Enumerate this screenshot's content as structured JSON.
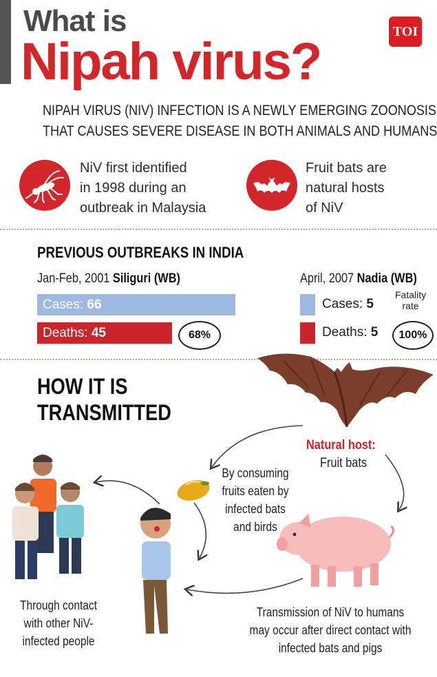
{
  "header": {
    "title_line1": "What is",
    "title_line2": "Nipah virus?",
    "logo_text": "TOI"
  },
  "intro": {
    "line1": "NIPAH VIRUS (NIV) INFECTION IS A NEWLY EMERGING ZOONOSIS",
    "line2": "THAT CAUSES SEVERE DISEASE IN BOTH ANIMALS AND HUMANS"
  },
  "facts": [
    {
      "line1": "NiV first identified",
      "line2": "in 1998 during an",
      "line3": "outbreak in Malaysia",
      "icon": "mosquito-icon"
    },
    {
      "line1": "Fruit bats are",
      "line2": "natural hosts",
      "line3": "of NiV",
      "icon": "bat-icon"
    }
  ],
  "outbreaks": {
    "title": "PREVIOUS OUTBREAKS IN INDIA",
    "siliguri": {
      "date": "Jan-Feb, 2001",
      "place": "Siliguri (WB)",
      "cases_label": "Cases:",
      "cases": 66,
      "deaths_label": "Deaths:",
      "deaths": 45,
      "fatality": "68%"
    },
    "nadia": {
      "date": "April, 2007",
      "place": "Nadia (WB)",
      "cases_label": "Cases:",
      "cases": 5,
      "deaths_label": "Deaths:",
      "deaths": 5,
      "fatality": "100%",
      "fatality_label_line1": "Fatality",
      "fatality_label_line2": "rate"
    },
    "colors": {
      "cases": "#9db8e1",
      "deaths": "#c9262c"
    }
  },
  "transmission": {
    "title_line1": "HOW IT IS",
    "title_line2": "TRANSMITTED",
    "natural_host_label": "Natural host:",
    "natural_host_value": "Fruit bats",
    "fruit_caption": [
      "By consuming",
      "fruits eaten by",
      "infected bats",
      "and birds"
    ],
    "contact_caption": [
      "Through contact",
      "with other NiV-",
      "infected people"
    ],
    "pig_caption": [
      "Transmission of NiV to humans",
      "may occur after direct contact with",
      "infected bats and pigs"
    ]
  }
}
